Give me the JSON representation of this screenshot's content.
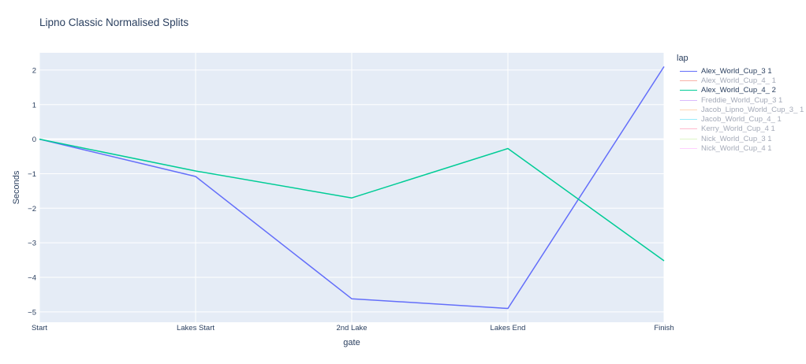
{
  "chart_data": {
    "type": "line",
    "title": "Lipno Classic Normalised Splits",
    "xlabel": "gate",
    "ylabel": "Seconds",
    "categories": [
      "Start",
      "Lakes Start",
      "2nd Lake",
      "Lakes End",
      "Finish"
    ],
    "ylim": [
      -5.3,
      2.5
    ],
    "yticks": [
      2,
      1,
      0,
      -1,
      -2,
      -3,
      -4,
      -5
    ],
    "ytick_labels": [
      "2",
      "1",
      "0",
      "−1",
      "−2",
      "−3",
      "−4",
      "−5"
    ],
    "grid": true,
    "legend_title": "lap",
    "legend_position": "right",
    "series": [
      {
        "name": "Alex_World_Cup_3 1",
        "color": "#636efa",
        "visible": true,
        "values": [
          0,
          -1.08,
          -4.62,
          -4.9,
          2.1
        ]
      },
      {
        "name": "Alex_World_Cup_4_ 1",
        "color": "#ef553b",
        "visible": false
      },
      {
        "name": "Alex_World_Cup_4_ 2",
        "color": "#00cc96",
        "visible": true,
        "values": [
          0,
          -0.92,
          -1.7,
          -0.27,
          -3.52
        ]
      },
      {
        "name": "Freddie_World_Cup_3 1",
        "color": "#ab63fa",
        "visible": false
      },
      {
        "name": "Jacob_Lipno_World_Cup_3_ 1",
        "color": "#ffa15a",
        "visible": false
      },
      {
        "name": "Jacob_World_Cup_4_ 1",
        "color": "#19d3f3",
        "visible": false
      },
      {
        "name": "Kerry_World_Cup_4 1",
        "color": "#ff6692",
        "visible": false
      },
      {
        "name": "Nick_World_Cup_3 1",
        "color": "#b6e880",
        "visible": false
      },
      {
        "name": "Nick_World_Cup_4 1",
        "color": "#ff97ff",
        "visible": false
      }
    ]
  }
}
